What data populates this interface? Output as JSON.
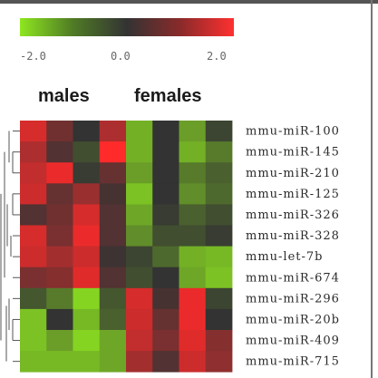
{
  "chart_data": {
    "type": "heatmap",
    "colorscale": {
      "min": -2.0,
      "max": 2.0,
      "colors": {
        "low": "#8ee620",
        "mid": "#333333",
        "high": "#ff2a2a"
      },
      "tick_labels": [
        "-2.0",
        "0.0",
        "2.0"
      ]
    },
    "column_groups": [
      {
        "label": "males",
        "columns": 4
      },
      {
        "label": "females",
        "columns": 4
      }
    ],
    "rows": [
      "mmu-miR-100",
      "mmu-miR-145",
      "mmu-miR-210",
      "mmu-miR-125",
      "mmu-miR-326",
      "mmu-miR-328",
      "mmu-let-7b",
      "mmu-miR-674",
      "mmu-miR-296",
      "mmu-miR-20b",
      "mmu-miR-409",
      "mmu-miR-715"
    ],
    "values": [
      [
        1.6,
        0.6,
        0.0,
        1.2,
        -1.4,
        0.0,
        -1.2,
        -0.2
      ],
      [
        1.2,
        0.3,
        -0.3,
        2.0,
        -1.4,
        0.0,
        -1.4,
        -0.8
      ],
      [
        1.4,
        1.8,
        -0.1,
        0.5,
        -1.2,
        0.0,
        -0.8,
        -0.5
      ],
      [
        1.5,
        0.5,
        1.0,
        0.2,
        -1.6,
        0.0,
        -1.0,
        -0.6
      ],
      [
        0.3,
        0.6,
        1.6,
        0.3,
        -1.3,
        -0.1,
        -0.5,
        -0.3
      ],
      [
        1.6,
        0.7,
        1.8,
        0.3,
        -1.0,
        -0.3,
        -0.3,
        -0.1
      ],
      [
        1.5,
        1.1,
        1.5,
        0.1,
        -0.2,
        -0.6,
        -1.4,
        -1.5
      ],
      [
        0.7,
        0.8,
        1.7,
        0.3,
        -0.3,
        0.0,
        -1.3,
        -1.6
      ],
      [
        -0.4,
        -0.8,
        -1.8,
        -0.4,
        1.6,
        0.2,
        1.8,
        -0.2
      ],
      [
        -1.6,
        0.0,
        -1.5,
        -0.5,
        1.5,
        0.5,
        1.8,
        0.0
      ],
      [
        -1.6,
        -1.2,
        -1.8,
        -1.3,
        1.4,
        0.7,
        1.7,
        0.8
      ],
      [
        -1.5,
        -1.5,
        -1.5,
        -1.3,
        1.1,
        0.3,
        1.5,
        0.9
      ]
    ]
  }
}
